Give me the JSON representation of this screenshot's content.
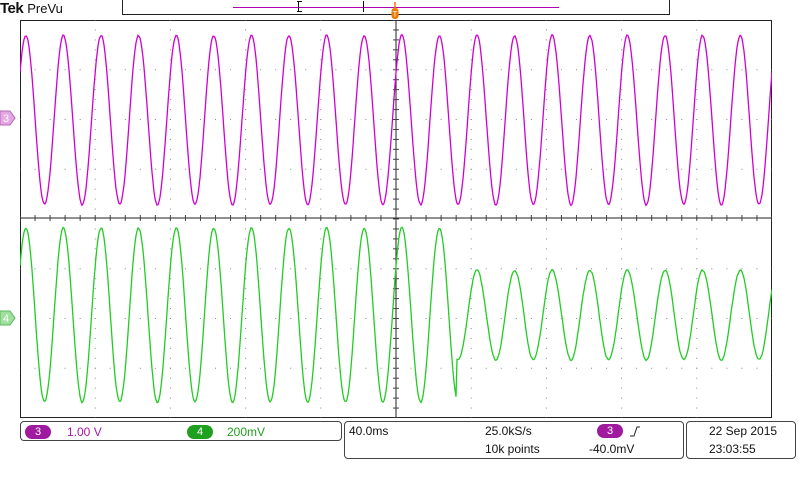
{
  "header": {
    "brand": "Tek",
    "mode": "PreVu"
  },
  "channels": {
    "ch3": {
      "number": "3",
      "scale": "1.00 V",
      "color": "#d000d0"
    },
    "ch4": {
      "number": "4",
      "scale": "200mV",
      "color": "#22cc22"
    }
  },
  "horizontal": {
    "time_per_div": "40.0ms",
    "sample_rate": "25.0kS/s",
    "record_length": "10k points"
  },
  "trigger": {
    "source": "3",
    "slope_icon": "rising-edge-icon",
    "level": "-40.0mV"
  },
  "datetime": {
    "date": "22 Sep  2015",
    "time": "23:03:55"
  },
  "waveforms": {
    "ch3": {
      "cycles_on_screen": 20,
      "peak_to_peak_divisions": 3.4
    },
    "ch4": {
      "cycles_on_screen": 20,
      "peak_to_peak_divisions_before": 3.5,
      "peak_to_peak_divisions_after": 1.8,
      "amplitude_change_fraction_of_screen": 0.58
    }
  }
}
